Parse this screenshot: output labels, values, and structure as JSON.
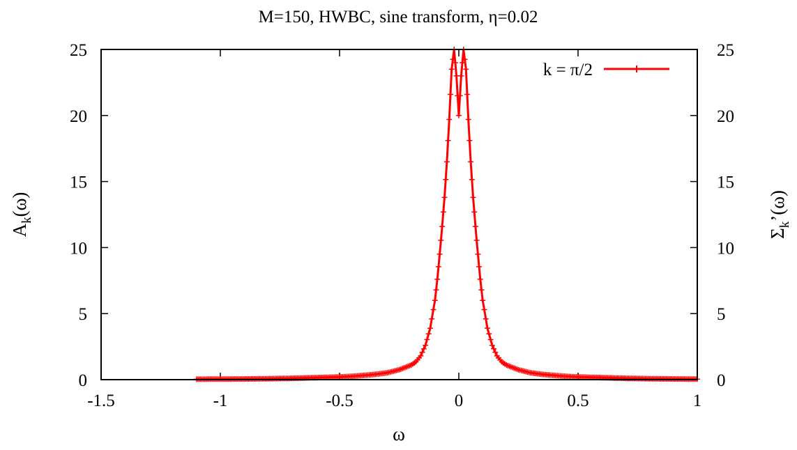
{
  "chart_data": {
    "type": "line",
    "title": "M=150, HWBC, sine transform, η=0.02",
    "xlabel": "ω",
    "ylabel_left": {
      "main": "A",
      "sub": "k",
      "tail": "(ω)"
    },
    "ylabel_right": {
      "main": "Σ",
      "sub": "k",
      "tail": "’(ω)"
    },
    "xlim": [
      -1.5,
      1.0
    ],
    "ylim": [
      0,
      25
    ],
    "xticks": [
      -1.5,
      -1,
      -0.5,
      0,
      0.5,
      1
    ],
    "xtick_labels": [
      "-1.5",
      "-1",
      "-0.5",
      "0",
      "0.5",
      "1"
    ],
    "yticks": [
      0,
      5,
      10,
      15,
      20,
      25
    ],
    "ytick_labels": [
      "0",
      "5",
      "10",
      "15",
      "20",
      "25"
    ],
    "right_yticks": [
      0,
      5,
      10,
      15,
      20,
      25
    ],
    "right_ytick_labels": [
      "0",
      "5",
      "10",
      "15",
      "20",
      "25"
    ],
    "grid": false,
    "legend_position": "top-right",
    "colors": {
      "series": "#ff0000",
      "frame": "#000000"
    },
    "series": [
      {
        "name": "k = π/2",
        "marker": "plus",
        "x_range": [
          -1.1,
          1.0
        ],
        "x": [
          -1.1,
          -1.0,
          -0.9,
          -0.8,
          -0.7,
          -0.6,
          -0.5,
          -0.45,
          -0.4,
          -0.35,
          -0.3,
          -0.25,
          -0.2,
          -0.18,
          -0.16,
          -0.14,
          -0.12,
          -0.1,
          -0.09,
          -0.08,
          -0.07,
          -0.06,
          -0.05,
          -0.04,
          -0.03,
          -0.02,
          -0.01,
          0.0,
          0.01,
          0.02,
          0.03,
          0.04,
          0.05,
          0.06,
          0.07,
          0.08,
          0.09,
          0.1,
          0.12,
          0.14,
          0.16,
          0.18,
          0.2,
          0.25,
          0.3,
          0.35,
          0.4,
          0.45,
          0.5,
          0.6,
          0.7,
          0.8,
          0.9,
          1.0
        ],
        "y": [
          0.03,
          0.04,
          0.05,
          0.07,
          0.1,
          0.15,
          0.2,
          0.25,
          0.32,
          0.4,
          0.52,
          0.75,
          1.1,
          1.35,
          1.8,
          2.6,
          3.9,
          6.0,
          7.6,
          9.5,
          11.6,
          13.8,
          16.5,
          19.7,
          23.5,
          25.0,
          23.0,
          20.0,
          23.0,
          25.0,
          23.5,
          19.7,
          16.5,
          13.8,
          11.6,
          9.5,
          7.6,
          6.0,
          3.9,
          2.6,
          1.8,
          1.35,
          1.1,
          0.75,
          0.52,
          0.4,
          0.32,
          0.25,
          0.2,
          0.15,
          0.1,
          0.07,
          0.05,
          0.04
        ]
      }
    ]
  }
}
